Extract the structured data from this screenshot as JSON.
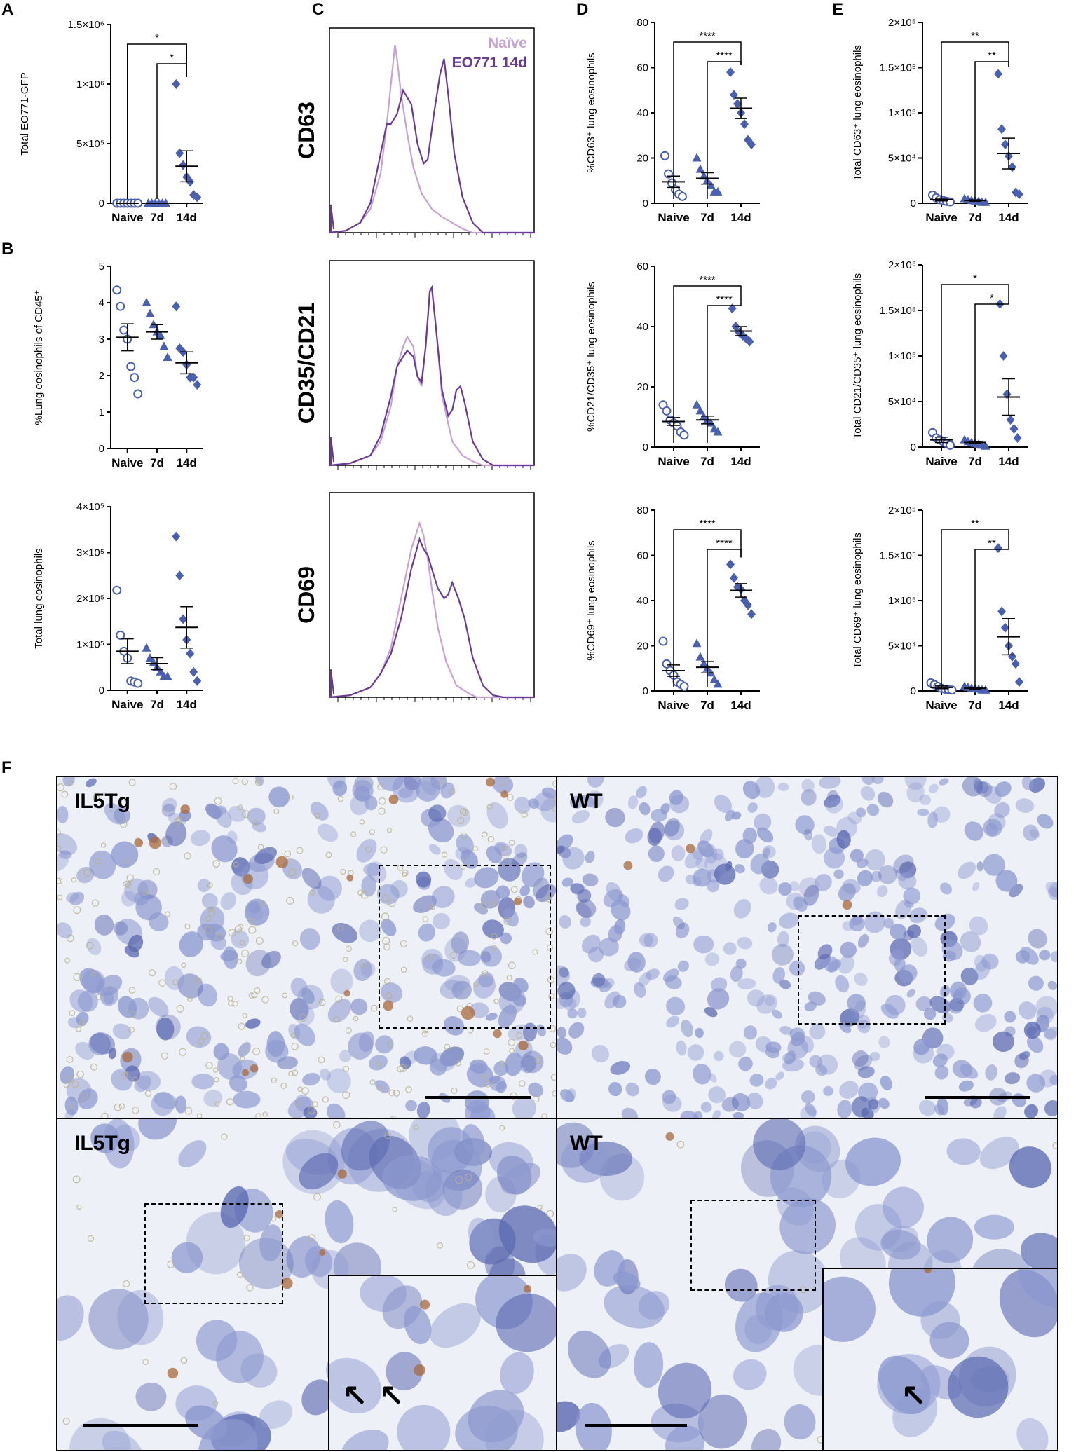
{
  "panels": {
    "A": "A",
    "B": "B",
    "C": "C",
    "D": "D",
    "E": "E",
    "F": "F"
  },
  "colors": {
    "series": "#4a5fae",
    "naive_hist": "#c7a2d6",
    "eo771_hist": "#6a3a96",
    "tissue_bg": "#eef0f8",
    "cell": "#8c98cf",
    "cell_dark": "#5a68b0",
    "eos": "#a86a3c"
  },
  "categories": [
    "Naive",
    "7d",
    "14d"
  ],
  "chart_data": [
    {
      "id": "A",
      "type": "scatter",
      "ylabel": "Total EO771-GFP",
      "ylim": [
        0,
        1500000
      ],
      "yticks": [
        "0",
        "5×10⁵",
        "1×10⁶",
        "1.5×10⁶"
      ],
      "yticks_values": [
        0,
        500000,
        1000000,
        1500000
      ],
      "points": [
        [
          0,
          0,
          0,
          0,
          0,
          0,
          0
        ],
        [
          0,
          0,
          0,
          0,
          0,
          0
        ],
        [
          1000000,
          420000,
          320000,
          220000,
          180000,
          70000,
          50000
        ]
      ],
      "mean": [
        0,
        0,
        310000
      ],
      "sem": [
        0,
        0,
        130000
      ],
      "sig": [
        {
          "from": 0,
          "to": 2,
          "label": "*"
        },
        {
          "from": 1,
          "to": 2,
          "label": "*"
        }
      ]
    },
    {
      "id": "B1",
      "type": "scatter",
      "ylabel": "%Lung eosinophils of CD45⁺",
      "ylim": [
        0,
        5
      ],
      "yticks": [
        "0",
        "1",
        "2",
        "3",
        "4",
        "5"
      ],
      "yticks_values": [
        0,
        1,
        2,
        3,
        4,
        5
      ],
      "points": [
        [
          4.35,
          3.9,
          3.25,
          3.0,
          2.25,
          1.95,
          1.5
        ],
        [
          4.0,
          3.7,
          3.4,
          3.2,
          3.1,
          2.8,
          2.5
        ],
        [
          3.9,
          2.75,
          2.65,
          2.3,
          1.95,
          1.95,
          1.75
        ]
      ],
      "mean": [
        3.05,
        3.2,
        2.35
      ],
      "sem": [
        0.37,
        0.2,
        0.3
      ],
      "sig": []
    },
    {
      "id": "B2",
      "type": "scatter",
      "ylabel": "Total lung eosinophils",
      "ylim": [
        0,
        400000
      ],
      "yticks": [
        "0",
        "1×10⁵",
        "2×10⁵",
        "3×10⁵",
        "4×10⁵"
      ],
      "yticks_values": [
        0,
        100000,
        200000,
        300000,
        400000
      ],
      "points": [
        [
          218000,
          120000,
          85000,
          70000,
          20000,
          18000,
          15000
        ],
        [
          92000,
          70000,
          60000,
          50000,
          40000,
          30000,
          30000
        ],
        [
          335000,
          250000,
          155000,
          110000,
          80000,
          40000,
          20000
        ]
      ],
      "mean": [
        85000,
        58000,
        137000
      ],
      "sem": [
        27000,
        13000,
        45000
      ],
      "sig": []
    },
    {
      "id": "D1",
      "type": "scatter",
      "ylabel": "%CD63⁺ lung eosinophils",
      "ylim": [
        0,
        80
      ],
      "yticks": [
        "0",
        "20",
        "40",
        "60",
        "80"
      ],
      "yticks_values": [
        0,
        20,
        40,
        60,
        80
      ],
      "points": [
        [
          21,
          13,
          9,
          6,
          4,
          3
        ],
        [
          20,
          15,
          12,
          10,
          8,
          5,
          5
        ],
        [
          58,
          48,
          44,
          40,
          35,
          28,
          26
        ]
      ],
      "mean": [
        9.5,
        11,
        42
      ],
      "sem": [
        2.5,
        2.5,
        4.5
      ],
      "sig": [
        {
          "from": 0,
          "to": 2,
          "label": "****"
        },
        {
          "from": 1,
          "to": 2,
          "label": "****"
        }
      ]
    },
    {
      "id": "D2",
      "type": "scatter",
      "ylabel": "%CD21/CD35⁺ lung eosinophils",
      "ylim": [
        0,
        60
      ],
      "yticks": [
        "0",
        "20",
        "40",
        "60"
      ],
      "yticks_values": [
        0,
        20,
        40,
        60
      ],
      "points": [
        [
          14,
          12,
          9,
          8,
          7,
          5,
          4
        ],
        [
          14,
          12,
          10,
          9,
          8,
          6,
          5
        ],
        [
          46,
          40,
          38,
          37,
          36,
          35
        ]
      ],
      "mean": [
        8.5,
        9,
        38.5
      ],
      "sem": [
        1.3,
        1.3,
        1.5
      ],
      "sig": [
        {
          "from": 0,
          "to": 2,
          "label": "****"
        },
        {
          "from": 1,
          "to": 2,
          "label": "****"
        }
      ]
    },
    {
      "id": "D3",
      "type": "scatter",
      "ylabel": "%CD69⁺ lung eosinophils",
      "ylim": [
        0,
        80
      ],
      "yticks": [
        "0",
        "20",
        "40",
        "60",
        "80"
      ],
      "yticks_values": [
        0,
        20,
        40,
        60,
        80
      ],
      "points": [
        [
          22,
          12,
          9,
          7,
          4,
          3,
          2
        ],
        [
          21,
          15,
          12,
          10,
          8,
          5,
          3
        ],
        [
          56,
          50,
          46,
          45,
          40,
          38,
          34
        ]
      ],
      "mean": [
        9,
        10.5,
        44.5
      ],
      "sem": [
        2.5,
        2.5,
        3
      ],
      "sig": [
        {
          "from": 0,
          "to": 2,
          "label": "****"
        },
        {
          "from": 1,
          "to": 2,
          "label": "****"
        }
      ]
    },
    {
      "id": "E1",
      "type": "scatter",
      "ylabel": "Total CD63⁺ lung eosinophils",
      "ylim": [
        0,
        200000
      ],
      "yticks": [
        "0",
        "5×10⁴",
        "1×10⁵",
        "1.5×10⁵",
        "2×10⁵"
      ],
      "yticks_values": [
        0,
        50000,
        100000,
        150000,
        200000
      ],
      "points": [
        [
          9000,
          6000,
          4000,
          3000,
          2000,
          1500
        ],
        [
          5000,
          4000,
          3000,
          2500,
          2000,
          1000,
          1000
        ],
        [
          143000,
          82000,
          65000,
          52000,
          40000,
          12000,
          10000
        ]
      ],
      "mean": [
        4000,
        3000,
        55000
      ],
      "sem": [
        1500,
        800,
        17000
      ],
      "sig": [
        {
          "from": 0,
          "to": 2,
          "label": "**"
        },
        {
          "from": 1,
          "to": 2,
          "label": "**"
        }
      ]
    },
    {
      "id": "E2",
      "type": "scatter",
      "ylabel": "Total CD21/CD35⁺ lung eosinophils",
      "ylim": [
        0,
        200000
      ],
      "yticks": [
        "0",
        "5×10⁴",
        "1×10⁵",
        "1.5×10⁵",
        "2×10⁵"
      ],
      "yticks_values": [
        0,
        50000,
        100000,
        150000,
        200000
      ],
      "points": [
        [
          16000,
          10000,
          8000,
          6000,
          4000,
          2000
        ],
        [
          8000,
          6000,
          5000,
          4000,
          3000,
          2000,
          1000
        ],
        [
          157000,
          100000,
          58000,
          30000,
          20000,
          10000
        ]
      ],
      "mean": [
        8000,
        5000,
        55000
      ],
      "sem": [
        3000,
        1000,
        20000
      ],
      "sig": [
        {
          "from": 0,
          "to": 2,
          "label": "*"
        },
        {
          "from": 1,
          "to": 2,
          "label": "*"
        }
      ]
    },
    {
      "id": "E3",
      "type": "scatter",
      "ylabel": "Total CD69⁺ lung eosinophils",
      "ylim": [
        0,
        200000
      ],
      "yticks": [
        "0",
        "5×10⁴",
        "1×10⁵",
        "1.5×10⁵",
        "2×10⁵"
      ],
      "yticks_values": [
        0,
        50000,
        100000,
        150000,
        200000
      ],
      "points": [
        [
          9000,
          7000,
          5000,
          3000,
          2000,
          1500,
          1000
        ],
        [
          5000,
          4000,
          3000,
          2500,
          2000,
          1000,
          1000
        ],
        [
          158000,
          88000,
          70000,
          50000,
          38000,
          30000,
          10000
        ]
      ],
      "mean": [
        4000,
        3000,
        60000
      ],
      "sem": [
        1500,
        800,
        20000
      ],
      "sig": [
        {
          "from": 0,
          "to": 2,
          "label": "**"
        },
        {
          "from": 1,
          "to": 2,
          "label": "**"
        }
      ]
    }
  ],
  "histograms": {
    "legend": [
      "Naïve",
      "EO771 14d"
    ],
    "rows": [
      {
        "label": "CD63",
        "naive": [
          [
            0,
            0
          ],
          [
            0.08,
            0.01
          ],
          [
            0.15,
            0.05
          ],
          [
            0.2,
            0.12
          ],
          [
            0.25,
            0.3
          ],
          [
            0.28,
            0.55
          ],
          [
            0.3,
            0.75
          ],
          [
            0.32,
            0.95
          ],
          [
            0.33,
            0.88
          ],
          [
            0.35,
            0.7
          ],
          [
            0.38,
            0.5
          ],
          [
            0.41,
            0.33
          ],
          [
            0.45,
            0.2
          ],
          [
            0.5,
            0.12
          ],
          [
            0.55,
            0.08
          ],
          [
            0.6,
            0.05
          ],
          [
            0.65,
            0.02
          ],
          [
            0.7,
            0
          ],
          [
            1,
            0
          ]
        ],
        "eo771": [
          [
            0,
            0
          ],
          [
            0.08,
            0.01
          ],
          [
            0.15,
            0.05
          ],
          [
            0.2,
            0.15
          ],
          [
            0.25,
            0.4
          ],
          [
            0.28,
            0.55
          ],
          [
            0.3,
            0.55
          ],
          [
            0.33,
            0.6
          ],
          [
            0.36,
            0.72
          ],
          [
            0.4,
            0.65
          ],
          [
            0.43,
            0.45
          ],
          [
            0.46,
            0.35
          ],
          [
            0.48,
            0.37
          ],
          [
            0.51,
            0.6
          ],
          [
            0.54,
            0.8
          ],
          [
            0.56,
            0.88
          ],
          [
            0.58,
            0.7
          ],
          [
            0.61,
            0.4
          ],
          [
            0.65,
            0.18
          ],
          [
            0.7,
            0.05
          ],
          [
            0.75,
            0
          ],
          [
            1,
            0
          ]
        ]
      },
      {
        "label": "CD35/CD21",
        "naive": [
          [
            0,
            0
          ],
          [
            0.1,
            0.01
          ],
          [
            0.2,
            0.05
          ],
          [
            0.25,
            0.12
          ],
          [
            0.3,
            0.3
          ],
          [
            0.33,
            0.5
          ],
          [
            0.36,
            0.6
          ],
          [
            0.38,
            0.65
          ],
          [
            0.41,
            0.6
          ],
          [
            0.43,
            0.45
          ],
          [
            0.45,
            0.4
          ],
          [
            0.47,
            0.6
          ],
          [
            0.49,
            0.88
          ],
          [
            0.5,
            0.9
          ],
          [
            0.52,
            0.7
          ],
          [
            0.55,
            0.35
          ],
          [
            0.6,
            0.12
          ],
          [
            0.65,
            0.05
          ],
          [
            0.7,
            0.02
          ],
          [
            0.75,
            0
          ],
          [
            1,
            0
          ]
        ],
        "eo771": [
          [
            0,
            0
          ],
          [
            0.1,
            0.01
          ],
          [
            0.2,
            0.05
          ],
          [
            0.25,
            0.15
          ],
          [
            0.3,
            0.35
          ],
          [
            0.33,
            0.5
          ],
          [
            0.36,
            0.55
          ],
          [
            0.38,
            0.58
          ],
          [
            0.41,
            0.55
          ],
          [
            0.43,
            0.45
          ],
          [
            0.45,
            0.42
          ],
          [
            0.47,
            0.6
          ],
          [
            0.49,
            0.88
          ],
          [
            0.5,
            0.9
          ],
          [
            0.52,
            0.7
          ],
          [
            0.55,
            0.38
          ],
          [
            0.58,
            0.25
          ],
          [
            0.6,
            0.28
          ],
          [
            0.62,
            0.38
          ],
          [
            0.64,
            0.4
          ],
          [
            0.66,
            0.32
          ],
          [
            0.7,
            0.12
          ],
          [
            0.75,
            0.03
          ],
          [
            0.8,
            0
          ],
          [
            1,
            0
          ]
        ]
      },
      {
        "label": "CD69",
        "naive": [
          [
            0,
            0
          ],
          [
            0.1,
            0.01
          ],
          [
            0.2,
            0.05
          ],
          [
            0.25,
            0.12
          ],
          [
            0.3,
            0.25
          ],
          [
            0.35,
            0.5
          ],
          [
            0.4,
            0.75
          ],
          [
            0.44,
            0.88
          ],
          [
            0.46,
            0.82
          ],
          [
            0.48,
            0.7
          ],
          [
            0.5,
            0.55
          ],
          [
            0.53,
            0.35
          ],
          [
            0.57,
            0.18
          ],
          [
            0.62,
            0.06
          ],
          [
            0.68,
            0.02
          ],
          [
            0.72,
            0
          ],
          [
            1,
            0
          ]
        ],
        "eo771": [
          [
            0,
            0
          ],
          [
            0.1,
            0.01
          ],
          [
            0.2,
            0.05
          ],
          [
            0.25,
            0.12
          ],
          [
            0.3,
            0.22
          ],
          [
            0.35,
            0.4
          ],
          [
            0.4,
            0.65
          ],
          [
            0.44,
            0.8
          ],
          [
            0.46,
            0.75
          ],
          [
            0.48,
            0.72
          ],
          [
            0.5,
            0.65
          ],
          [
            0.53,
            0.55
          ],
          [
            0.56,
            0.5
          ],
          [
            0.58,
            0.52
          ],
          [
            0.6,
            0.58
          ],
          [
            0.63,
            0.5
          ],
          [
            0.66,
            0.4
          ],
          [
            0.7,
            0.2
          ],
          [
            0.75,
            0.06
          ],
          [
            0.8,
            0.01
          ],
          [
            0.85,
            0
          ],
          [
            1,
            0
          ]
        ]
      }
    ]
  },
  "micrographs": {
    "top_left": "IL5Tg",
    "top_right": "WT",
    "bottom_left": "IL5Tg",
    "bottom_right": "WT"
  }
}
